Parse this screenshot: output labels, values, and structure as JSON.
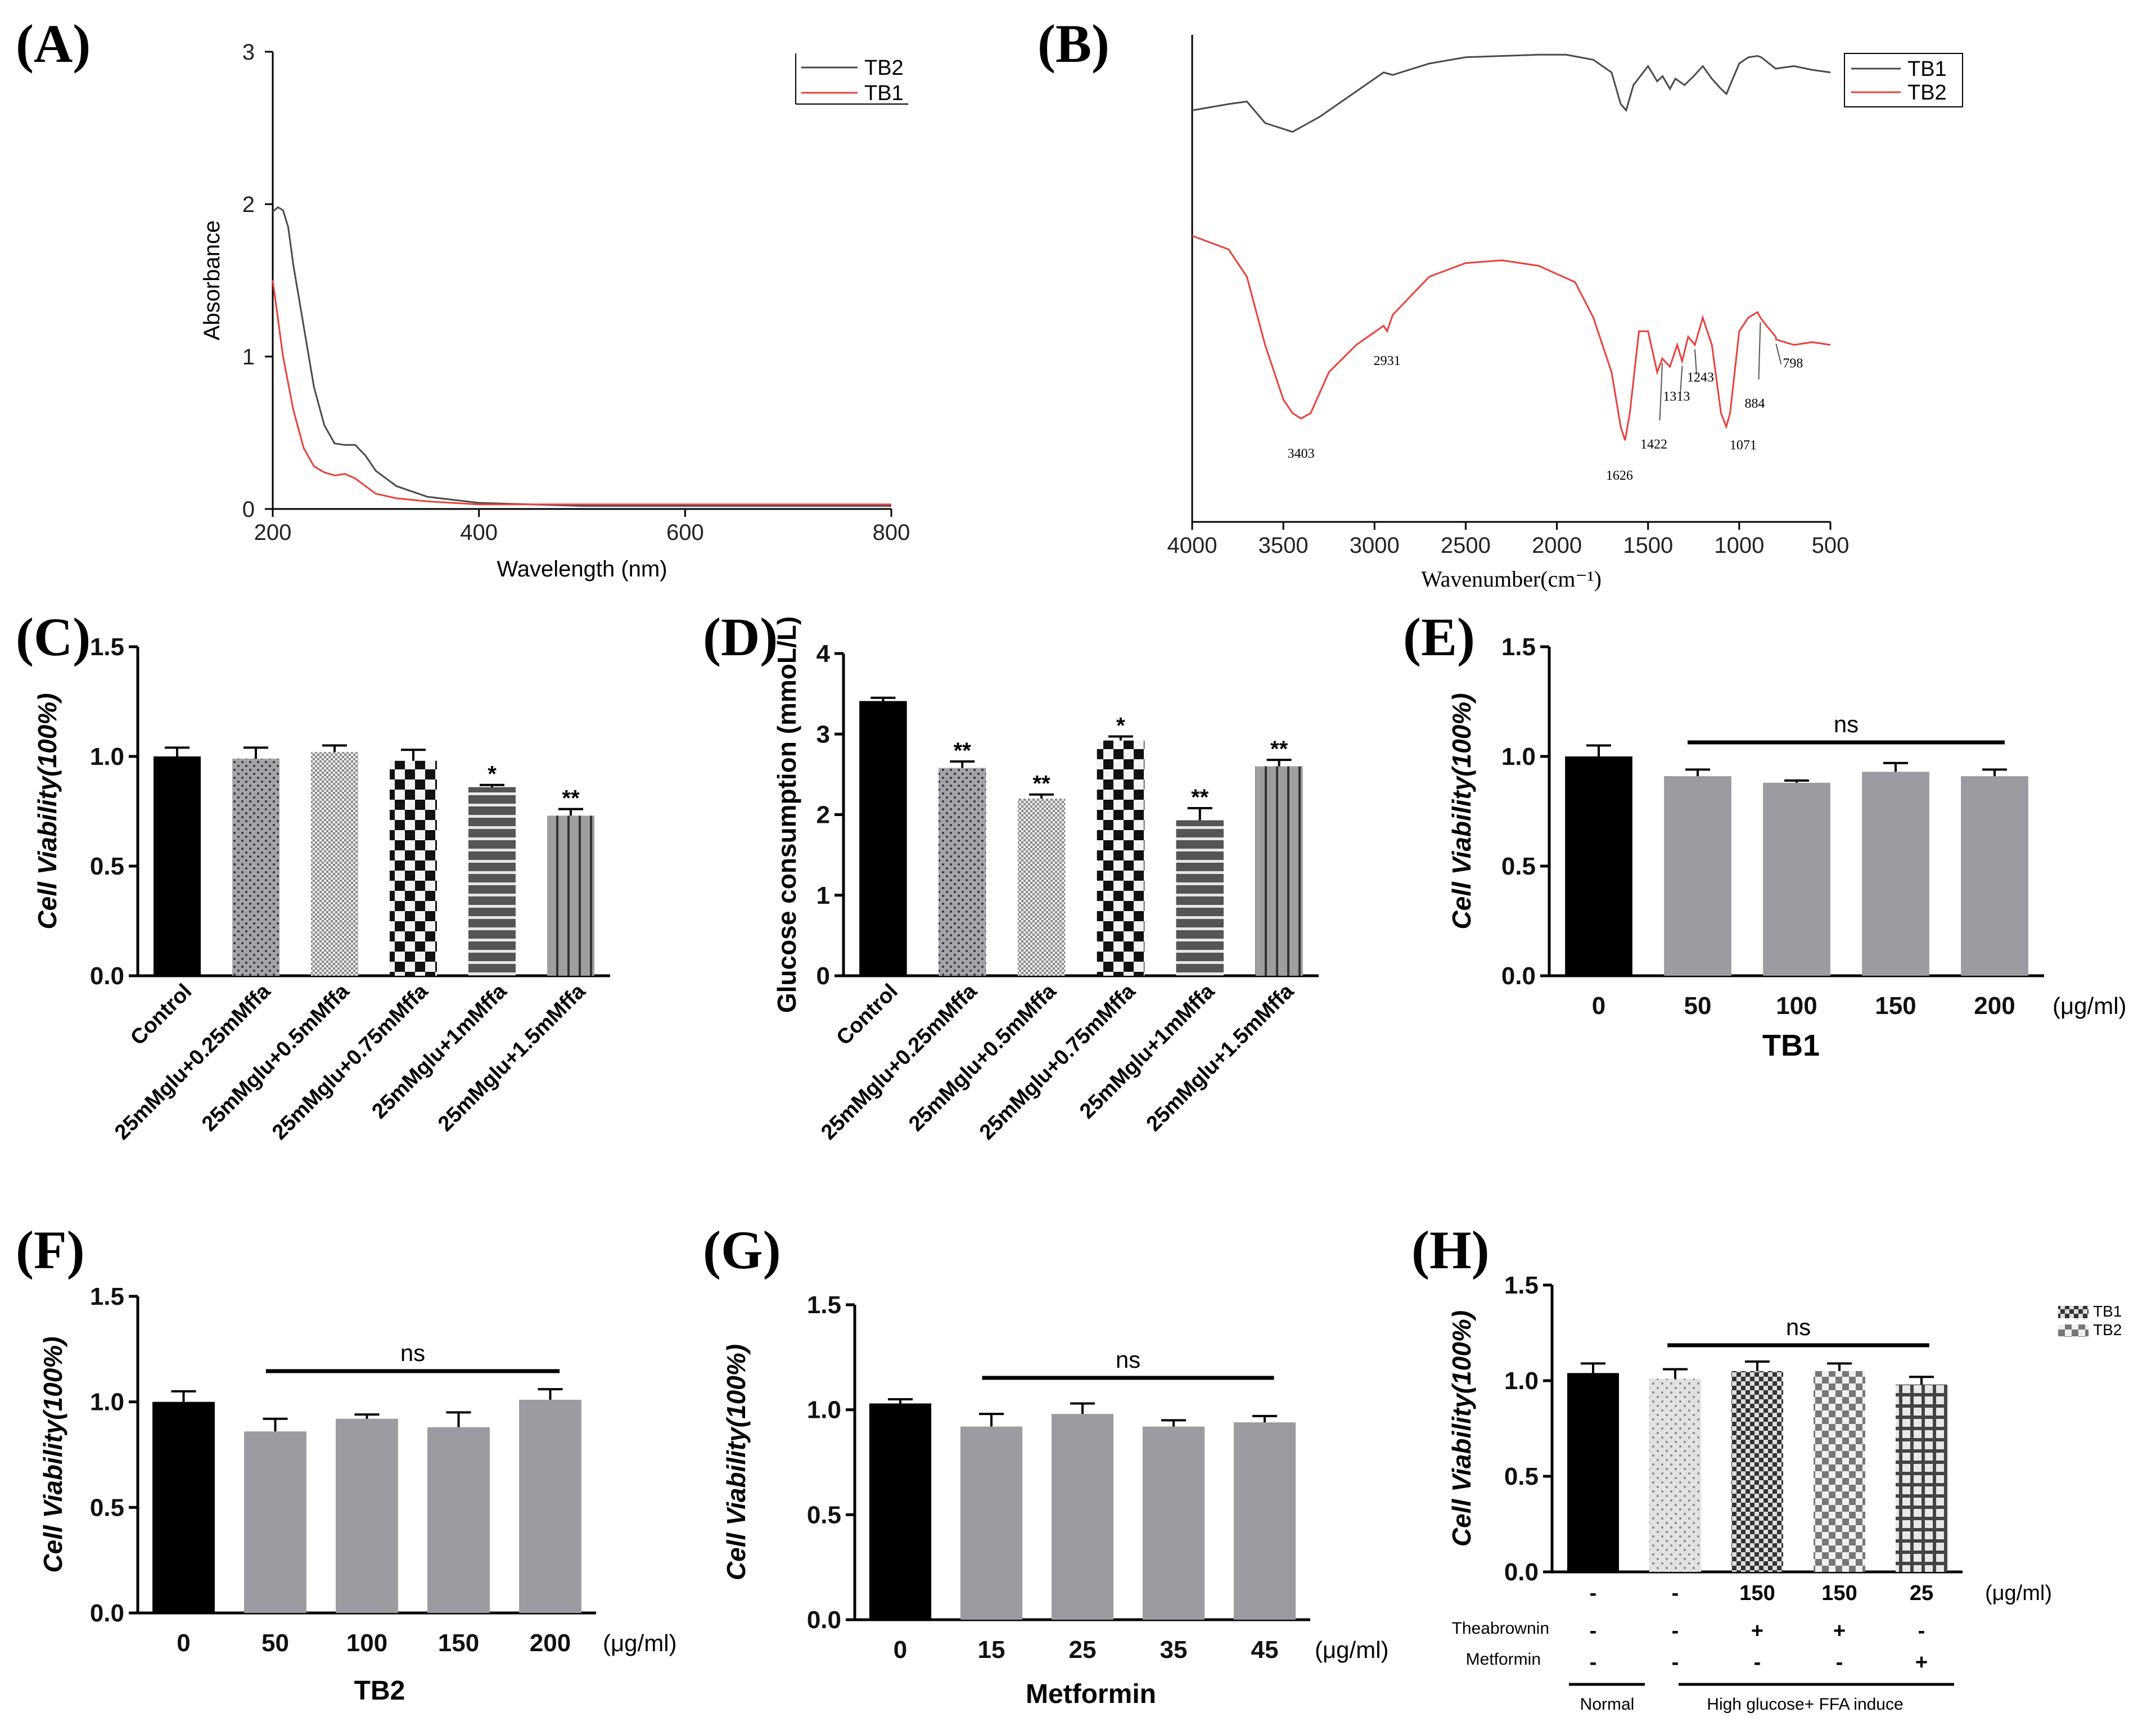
{
  "colors": {
    "black": "#000000",
    "gray": "#9b9ba1",
    "red": "#e8413c",
    "dark": "#4a4a4a"
  },
  "chart_data": [
    {
      "id": "A",
      "label": "(A)",
      "type": "line",
      "xlabel": "Wavelength (nm)",
      "ylabel": "Absorbance",
      "xlim": [
        200,
        800
      ],
      "ylim": [
        0,
        3
      ],
      "xticks": [
        "200",
        "400",
        "600",
        "800"
      ],
      "yticks": [
        "0",
        "1",
        "2",
        "3"
      ],
      "legend": [
        "TB2",
        "TB1"
      ],
      "legend_position": "top-right",
      "series": [
        {
          "name": "TB2",
          "color": "#4a4a4a",
          "x": [
            200,
            205,
            210,
            215,
            220,
            230,
            240,
            250,
            260,
            270,
            280,
            290,
            300,
            320,
            350,
            400,
            450,
            500,
            600,
            700,
            800
          ],
          "y": [
            1.95,
            1.98,
            1.96,
            1.85,
            1.6,
            1.2,
            0.8,
            0.55,
            0.43,
            0.42,
            0.42,
            0.35,
            0.25,
            0.15,
            0.08,
            0.04,
            0.03,
            0.02,
            0.02,
            0.02,
            0.02
          ]
        },
        {
          "name": "TB1",
          "color": "#e8413c",
          "x": [
            200,
            205,
            210,
            220,
            230,
            240,
            250,
            260,
            270,
            280,
            290,
            300,
            320,
            350,
            400,
            450,
            500,
            600,
            700,
            800
          ],
          "y": [
            1.5,
            1.25,
            1.0,
            0.65,
            0.4,
            0.28,
            0.24,
            0.22,
            0.23,
            0.2,
            0.15,
            0.1,
            0.07,
            0.05,
            0.03,
            0.03,
            0.03,
            0.03,
            0.03,
            0.03
          ]
        }
      ]
    },
    {
      "id": "B",
      "label": "(B)",
      "type": "line",
      "xlabel": "Wavenumber(cm⁻¹)",
      "xlim": [
        4000,
        500
      ],
      "xticks": [
        "4000",
        "3500",
        "3000",
        "2500",
        "2000",
        "1500",
        "1000",
        "500"
      ],
      "legend": [
        "TB1",
        "TB2"
      ],
      "legend_position": "top-right",
      "series": [
        {
          "name": "TB1",
          "color": "#4a4a4a",
          "x": [
            4000,
            3800,
            3700,
            3600,
            3450,
            3300,
            3100,
            2950,
            2900,
            2700,
            2500,
            2300,
            2100,
            1950,
            1800,
            1700,
            1650,
            1620,
            1580,
            1500,
            1450,
            1420,
            1380,
            1350,
            1300,
            1250,
            1200,
            1150,
            1100,
            1070,
            1050,
            1000,
            950,
            900,
            880,
            800,
            700,
            600,
            500
          ],
          "y": [
            0.55,
            0.6,
            0.62,
            0.45,
            0.38,
            0.5,
            0.7,
            0.85,
            0.83,
            0.92,
            0.97,
            0.98,
            0.99,
            0.99,
            0.95,
            0.85,
            0.6,
            0.55,
            0.75,
            0.9,
            0.78,
            0.82,
            0.72,
            0.8,
            0.75,
            0.82,
            0.9,
            0.8,
            0.72,
            0.68,
            0.75,
            0.92,
            0.97,
            0.98,
            0.97,
            0.88,
            0.9,
            0.87,
            0.85
          ]
        },
        {
          "name": "TB2",
          "color": "#e8413c",
          "x": [
            4000,
            3800,
            3700,
            3600,
            3500,
            3450,
            3403,
            3350,
            3250,
            3100,
            2950,
            2931,
            2900,
            2700,
            2500,
            2300,
            2100,
            1900,
            1800,
            1700,
            1650,
            1626,
            1600,
            1550,
            1500,
            1450,
            1422,
            1380,
            1340,
            1313,
            1280,
            1243,
            1200,
            1150,
            1100,
            1071,
            1050,
            1000,
            950,
            900,
            884,
            850,
            800,
            798,
            750,
            700,
            600,
            500
          ],
          "y": [
            0.95,
            0.9,
            0.8,
            0.55,
            0.35,
            0.3,
            0.28,
            0.3,
            0.45,
            0.55,
            0.62,
            0.6,
            0.66,
            0.8,
            0.85,
            0.86,
            0.84,
            0.78,
            0.65,
            0.45,
            0.25,
            0.2,
            0.3,
            0.6,
            0.6,
            0.45,
            0.5,
            0.47,
            0.55,
            0.49,
            0.58,
            0.55,
            0.65,
            0.55,
            0.3,
            0.25,
            0.3,
            0.6,
            0.65,
            0.67,
            0.65,
            0.62,
            0.58,
            0.57,
            0.56,
            0.55,
            0.56,
            0.55
          ]
        }
      ],
      "annotations": [
        "3403",
        "2931",
        "1626",
        "1422",
        "1313",
        "1243",
        "1071",
        "884",
        "798"
      ]
    },
    {
      "id": "C",
      "label": "(C)",
      "type": "bar",
      "ylabel": "Cell Viability(100%)",
      "ylim": [
        0,
        1.5
      ],
      "yticks": [
        "0.0",
        "0.5",
        "1.0",
        "1.5"
      ],
      "categories": [
        "Control",
        "25mMglu+0.25mMffa",
        "25mMglu+0.5mMffa",
        "25mMglu+0.75mMffa",
        "25mMglu+1mMffa",
        "25mMglu+1.5mMffa"
      ],
      "values": [
        1.0,
        0.99,
        1.02,
        0.98,
        0.86,
        0.73
      ],
      "errors": [
        0.04,
        0.05,
        0.03,
        0.05,
        0.01,
        0.03
      ],
      "significance": [
        "",
        "",
        "",
        "",
        "*",
        "**"
      ]
    },
    {
      "id": "D",
      "label": "(D)",
      "type": "bar",
      "ylabel": "Glucose consumption (mmoL/L)",
      "ylim": [
        0,
        4
      ],
      "yticks": [
        "0",
        "1",
        "2",
        "3",
        "4"
      ],
      "categories": [
        "Control",
        "25mMglu+0.25mMffa",
        "25mMglu+0.5mMffa",
        "25mMglu+0.75mMffa",
        "25mMglu+1mMffa",
        "25mMglu+1.5mMffa"
      ],
      "values": [
        3.41,
        2.58,
        2.2,
        2.92,
        1.93,
        2.6
      ],
      "errors": [
        0.04,
        0.08,
        0.05,
        0.05,
        0.15,
        0.08
      ],
      "significance": [
        "",
        "**",
        "**",
        "*",
        "**",
        "**"
      ]
    },
    {
      "id": "E",
      "label": "(E)",
      "type": "bar",
      "ylabel": "Cell Viability(100%)",
      "ylim": [
        0,
        1.5
      ],
      "yticks": [
        "0.0",
        "0.5",
        "1.0",
        "1.5"
      ],
      "categories": [
        "0",
        "50",
        "100",
        "150",
        "200"
      ],
      "unit": "(μg/ml)",
      "xlabel": "TB1",
      "values": [
        1.0,
        0.91,
        0.88,
        0.93,
        0.91
      ],
      "errors": [
        0.05,
        0.03,
        0.01,
        0.04,
        0.03
      ],
      "significance_label": "ns"
    },
    {
      "id": "F",
      "label": "(F)",
      "type": "bar",
      "ylabel": "Cell Viability(100%)",
      "ylim": [
        0,
        1.5
      ],
      "yticks": [
        "0.0",
        "0.5",
        "1.0",
        "1.5"
      ],
      "categories": [
        "0",
        "50",
        "100",
        "150",
        "200"
      ],
      "unit": "(μg/ml)",
      "xlabel": "TB2",
      "values": [
        1.0,
        0.86,
        0.92,
        0.88,
        1.01
      ],
      "errors": [
        0.05,
        0.06,
        0.02,
        0.07,
        0.05
      ],
      "significance_label": "ns"
    },
    {
      "id": "G",
      "label": "(G)",
      "type": "bar",
      "ylabel": "Cell Viability(100%)",
      "ylim": [
        0,
        1.5
      ],
      "yticks": [
        "0.0",
        "0.5",
        "1.0",
        "1.5"
      ],
      "categories": [
        "0",
        "15",
        "25",
        "35",
        "45"
      ],
      "unit": "(μg/ml)",
      "xlabel": "Metformin",
      "values": [
        1.03,
        0.92,
        0.98,
        0.92,
        0.94
      ],
      "errors": [
        0.02,
        0.06,
        0.05,
        0.03,
        0.03
      ],
      "significance_label": "ns"
    },
    {
      "id": "H",
      "label": "(H)",
      "type": "bar",
      "ylabel": "Cell Viability(100%)",
      "ylim": [
        0,
        1.5
      ],
      "yticks": [
        "0.0",
        "0.5",
        "1.0",
        "1.5"
      ],
      "values": [
        1.04,
        1.01,
        1.05,
        1.05,
        0.98
      ],
      "errors": [
        0.05,
        0.05,
        0.05,
        0.04,
        0.04
      ],
      "significance_label": "ns",
      "legend": [
        "TB1",
        "TB2"
      ],
      "table": {
        "dose_row": [
          "-",
          "-",
          "150",
          "150",
          "25"
        ],
        "dose_unit": "(μg/ml)",
        "theabrownin_label": "Theabrownin",
        "theabrownin_row": [
          "-",
          "-",
          "+",
          "+",
          "-"
        ],
        "metformin_label": "Metformin",
        "metformin_row": [
          "-",
          "-",
          "-",
          "-",
          "+"
        ],
        "group_normal": "Normal",
        "group_induced": "High glucose+ FFA induce"
      }
    }
  ]
}
